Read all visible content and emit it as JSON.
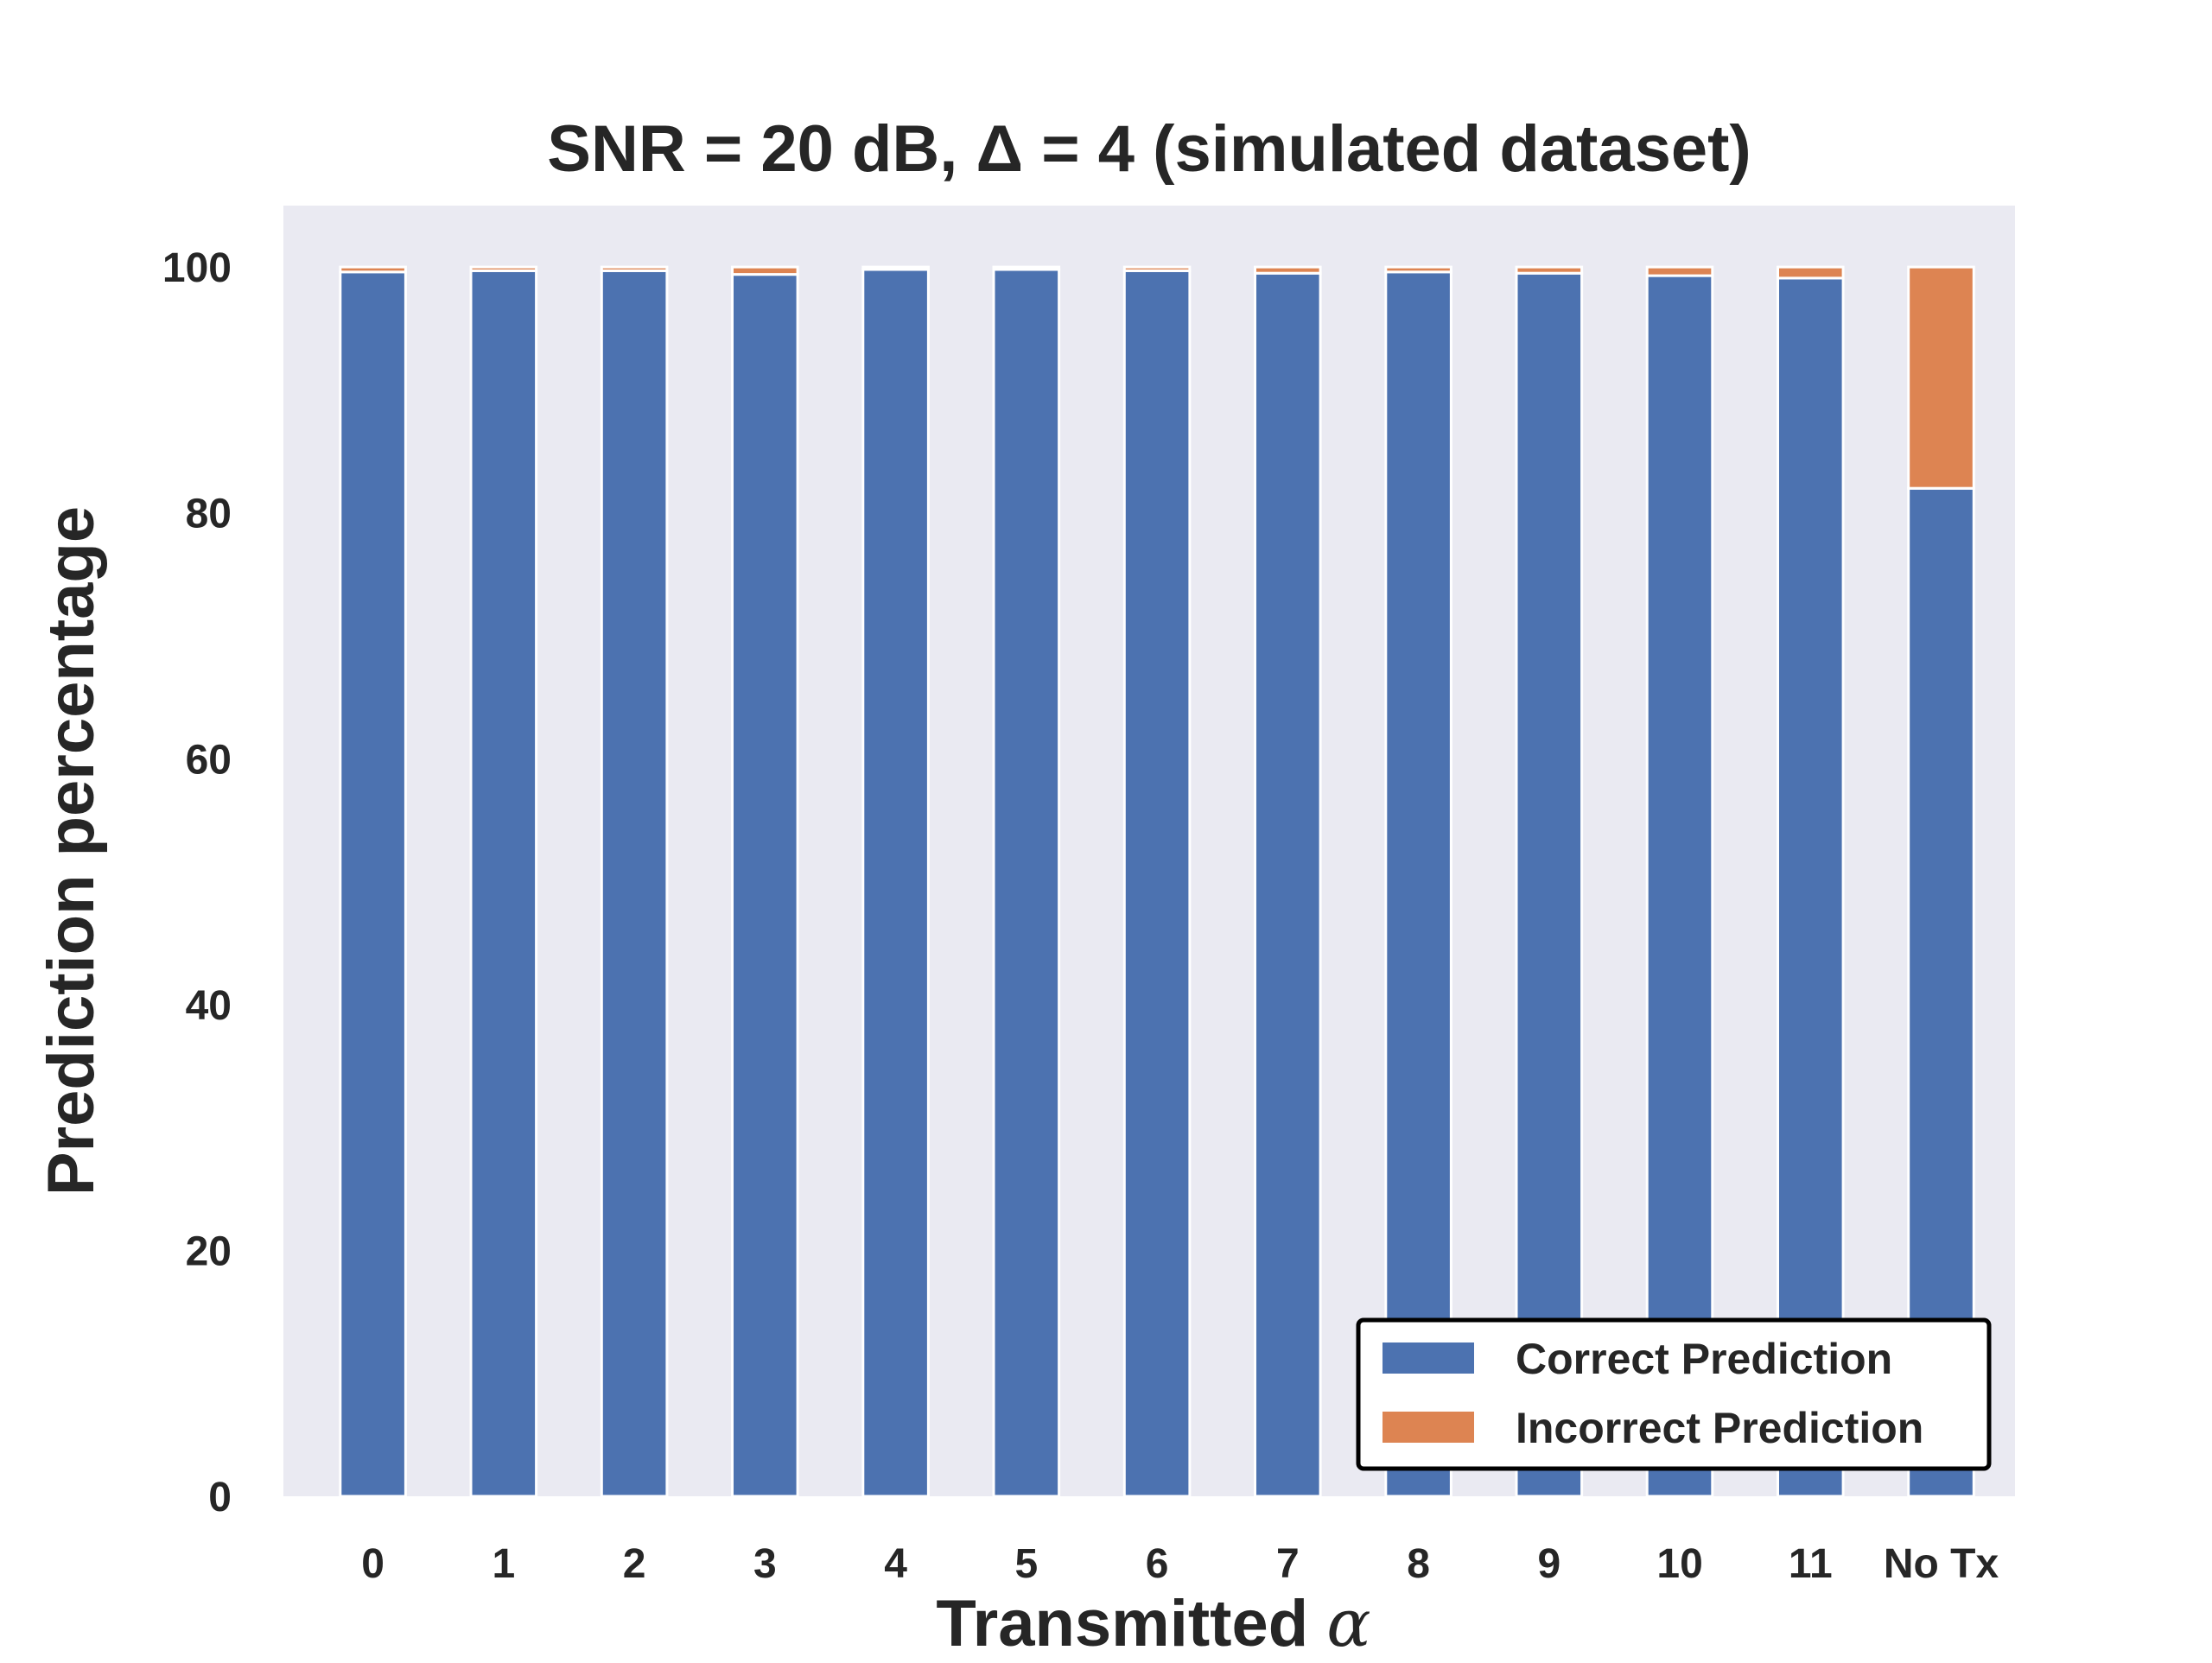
{
  "chart_data": {
    "type": "bar",
    "stacked": true,
    "title": "SNR = 20 dB, Δ = 4 (simulated dataset)",
    "xlabel_prefix": "Transmitted",
    "xlabel_symbol": "α",
    "ylabel": "Prediction percentage",
    "ylim": [
      0,
      105
    ],
    "yticks": [
      "0",
      "20",
      "40",
      "60",
      "80",
      "100"
    ],
    "categories": [
      "0",
      "1",
      "2",
      "3",
      "4",
      "5",
      "6",
      "7",
      "8",
      "9",
      "10",
      "11",
      "No Tx"
    ],
    "series": [
      {
        "name": "Correct Prediction",
        "color": "#4c72b0",
        "values": [
          99.6,
          99.7,
          99.7,
          99.4,
          99.8,
          99.8,
          99.7,
          99.5,
          99.6,
          99.5,
          99.3,
          99.1,
          82.0
        ]
      },
      {
        "name": "Incorrect Prediction",
        "color": "#dd8452",
        "values": [
          0.4,
          0.3,
          0.3,
          0.6,
          0.2,
          0.2,
          0.3,
          0.5,
          0.4,
          0.5,
          0.7,
          0.9,
          18.0
        ]
      }
    ],
    "grid": false,
    "legend_position": "lower right",
    "plot_background": "#eaeaf2"
  }
}
